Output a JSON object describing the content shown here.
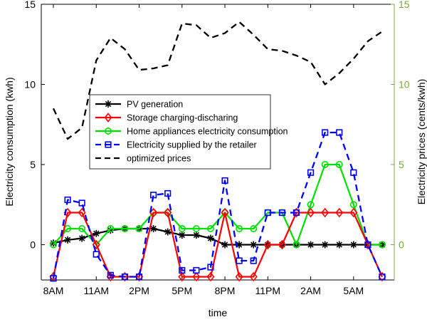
{
  "chart_data": {
    "type": "line",
    "xlabel": "time",
    "ylabel_left": "Electricity consumption (kwh)",
    "ylabel_right": "Electricity prices (cents/kwh)",
    "xlim": [
      0,
      23
    ],
    "ylim_left": [
      -2.2,
      15
    ],
    "ylim_right": [
      -2.2,
      15
    ],
    "grid": false,
    "legend_placement": "center-left",
    "left_ticks": [
      0,
      5,
      10,
      15
    ],
    "right_ticks": [
      0,
      5,
      10,
      15
    ],
    "x_ticks": [
      {
        "x": 0,
        "label": "8AM"
      },
      {
        "x": 3,
        "label": "11AM"
      },
      {
        "x": 6,
        "label": "2PM"
      },
      {
        "x": 9,
        "label": "5PM"
      },
      {
        "x": 12,
        "label": "8PM"
      },
      {
        "x": 15,
        "label": "11PM"
      },
      {
        "x": 18,
        "label": "2AM"
      },
      {
        "x": 21,
        "label": "5AM"
      }
    ],
    "x": [
      0,
      1,
      2,
      3,
      4,
      5,
      6,
      7,
      8,
      9,
      10,
      11,
      12,
      13,
      14,
      15,
      16,
      17,
      18,
      19,
      20,
      21,
      22,
      23
    ],
    "series": [
      {
        "name": "PV generation",
        "axis": "left",
        "color": "#000000",
        "style": "solid",
        "marker": "asterisk",
        "values": [
          0.1,
          0.3,
          0.4,
          0.7,
          0.9,
          1.0,
          1.0,
          1.0,
          0.8,
          0.6,
          0.6,
          0.4,
          0.0,
          0.0,
          0.0,
          0.0,
          0.0,
          0.0,
          0.0,
          0.0,
          0.0,
          0.0,
          0.0,
          0.0
        ]
      },
      {
        "name": "Storage charging-discharing",
        "axis": "left",
        "color": "#ff0000",
        "style": "solid",
        "marker": "diamond",
        "values": [
          -2,
          2,
          2,
          0,
          -2,
          -2,
          -2,
          2,
          2,
          -2,
          -2,
          -2,
          2,
          -2,
          -2,
          0,
          0,
          2,
          2,
          2,
          2,
          2,
          0,
          -2
        ]
      },
      {
        "name": "Home appliances electricity consumption",
        "axis": "left",
        "color": "#00e000",
        "style": "solid",
        "marker": "circle",
        "values": [
          0,
          1,
          1,
          0,
          1,
          1,
          1,
          2,
          2,
          1,
          1,
          1,
          2,
          1,
          1,
          2,
          2,
          0,
          2.5,
          5,
          5,
          2.5,
          0,
          0
        ]
      },
      {
        "name": "Electricity supplied by the retailer",
        "axis": "left",
        "color": "#0000ff",
        "style": "dashed",
        "marker": "square",
        "values": [
          -2.1,
          2.8,
          2.6,
          -0.6,
          -1.9,
          -2.0,
          -2.0,
          3.1,
          3.2,
          -1.6,
          -1.6,
          -1.4,
          4.0,
          -1.0,
          -1.0,
          2.0,
          2.0,
          2.0,
          4.5,
          7.0,
          7.0,
          4.5,
          0.0,
          -2.0
        ]
      },
      {
        "name": "optimized prices",
        "axis": "right",
        "color": "#000000",
        "style": "dashed",
        "marker": "none",
        "values": [
          8.5,
          6.6,
          7.3,
          11.5,
          12.9,
          12.2,
          10.9,
          11.0,
          11.2,
          13.8,
          13.7,
          12.9,
          13.2,
          13.9,
          13.1,
          12.2,
          12.1,
          11.8,
          11.4,
          10.0,
          10.7,
          11.6,
          12.7,
          13.3
        ]
      }
    ]
  },
  "colors": {
    "left_axis": "#000000",
    "right_axis": "#77ac30"
  }
}
